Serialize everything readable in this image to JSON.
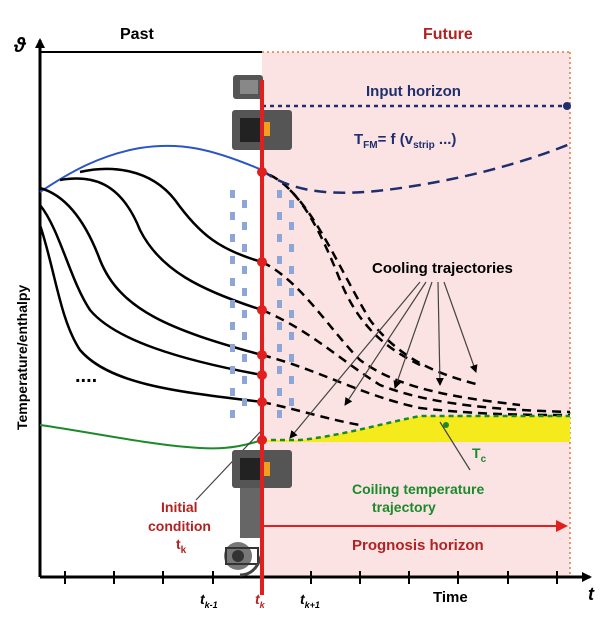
{
  "labels": {
    "past": "Past",
    "future": "Future",
    "y_axis_symbol": "ϑ",
    "y_axis_label": "Temperature/enthalpy",
    "x_axis_symbol": "t",
    "x_axis_label": "Time",
    "input_horizon": "Input horizon",
    "tfm_formula": "T",
    "tfm_sub": "FM",
    "tfm_eq": "= f (v",
    "tfm_strip": "strip",
    "tfm_tail": " ...)",
    "cooling_trajectories": "Cooling trajectories",
    "tc": "T",
    "tc_sub": "c",
    "coiling_line1": "Coiling temperature",
    "coiling_line2": "trajectory",
    "initial_line1": "Initial",
    "initial_line2": "condition",
    "initial_tk": "t",
    "initial_tk_sub": "k",
    "prognosis_horizon": "Prognosis horizon",
    "ellipsis": "....",
    "tick_km1": "t",
    "tick_km1_sub": "k-1",
    "tick_k": "t",
    "tick_k_sub": "k",
    "tick_kp1": "t",
    "tick_kp1_sub": "k+1"
  },
  "colors": {
    "past_color": "#000000",
    "future_color": "#b22222",
    "input_horizon_color": "#1f2f6e",
    "coiling_color": "#1a8a2a",
    "red_line": "#e0201e",
    "future_bg": "#fbe3e3",
    "band_yellow": "#f4ea1c"
  }
}
